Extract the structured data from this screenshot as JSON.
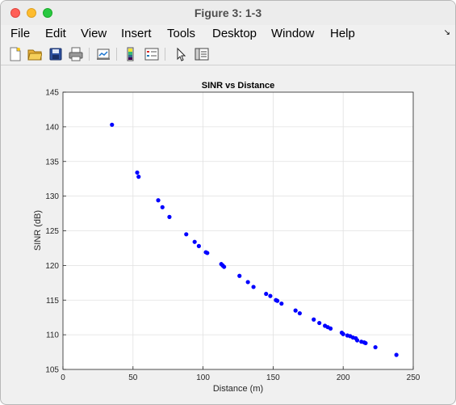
{
  "window": {
    "title": "Figure 3: 1-3"
  },
  "menu": {
    "items": [
      "File",
      "Edit",
      "View",
      "Insert",
      "Tools",
      "Desktop",
      "Window",
      "Help"
    ]
  },
  "toolbar": {
    "icons": [
      "new-figure-icon",
      "open-file-icon",
      "save-icon",
      "print-icon",
      "link-plot-icon",
      "insert-colorbar-icon",
      "insert-legend-icon",
      "pointer-icon",
      "plot-tools-icon"
    ]
  },
  "chart_data": {
    "type": "scatter",
    "title": "SINR vs Distance",
    "xlabel": "Distance (m)",
    "ylabel": "SINR (dB)",
    "xlim": [
      0,
      250
    ],
    "ylim": [
      105,
      145
    ],
    "xticks": [
      0,
      50,
      100,
      150,
      200,
      250
    ],
    "yticks": [
      105,
      110,
      115,
      120,
      125,
      130,
      135,
      140,
      145
    ],
    "grid": true,
    "marker_color": "#0000ff",
    "x": [
      35,
      53,
      54,
      68,
      71,
      76,
      88,
      94,
      97,
      102,
      103,
      113,
      114,
      115,
      126,
      132,
      136,
      145,
      148,
      152,
      153,
      156,
      166,
      169,
      179,
      183,
      187,
      189,
      191,
      199,
      200,
      203,
      205,
      207,
      209,
      210,
      213,
      215,
      216,
      223,
      238
    ],
    "y": [
      140.3,
      133.4,
      132.8,
      129.4,
      128.4,
      127.0,
      124.5,
      123.4,
      122.8,
      121.9,
      121.8,
      120.2,
      120.0,
      119.8,
      118.5,
      117.6,
      116.9,
      115.9,
      115.6,
      115.0,
      114.9,
      114.5,
      113.5,
      113.1,
      112.2,
      111.7,
      111.3,
      111.1,
      110.9,
      110.3,
      110.1,
      109.9,
      109.8,
      109.6,
      109.5,
      109.2,
      109.0,
      108.9,
      108.8,
      108.2,
      107.1
    ]
  }
}
